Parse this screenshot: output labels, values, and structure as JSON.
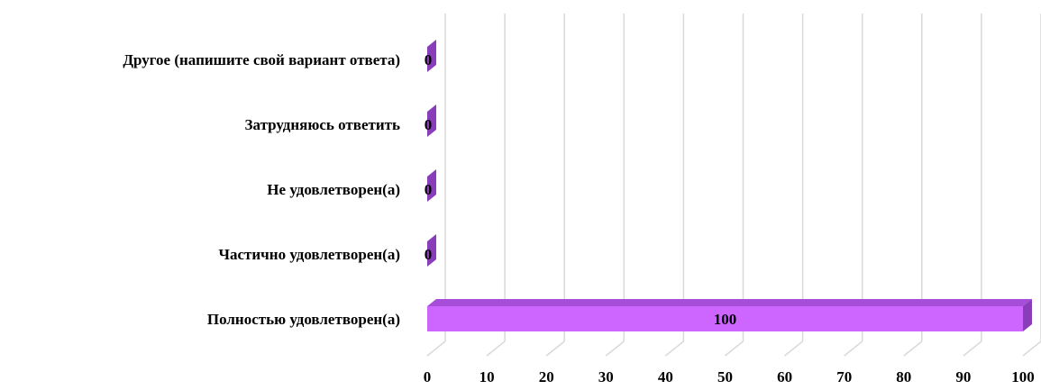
{
  "chart_data": {
    "type": "bar",
    "orientation": "horizontal",
    "style": "3d",
    "categories": [
      "Другое (напишите свой вариант ответа)",
      "Затрудняюсь ответить",
      "Не удовлетворен(а)",
      "Частично удовлетворен(а)",
      "Полностью удовлетворен(а)"
    ],
    "values": [
      0,
      0,
      0,
      0,
      100
    ],
    "data_labels": [
      "0",
      "0",
      "0",
      "0",
      "100"
    ],
    "xlim": [
      0,
      100
    ],
    "x_ticks": [
      "0",
      "10",
      "20",
      "30",
      "40",
      "50",
      "60",
      "70",
      "80",
      "90",
      "100"
    ],
    "grid": true,
    "legend": "none",
    "colors": {
      "bar_front": "#CC66FF",
      "bar_top": "#A64DD9",
      "bar_side": "#8A3DB8",
      "grid": "#d9d9d9"
    }
  }
}
